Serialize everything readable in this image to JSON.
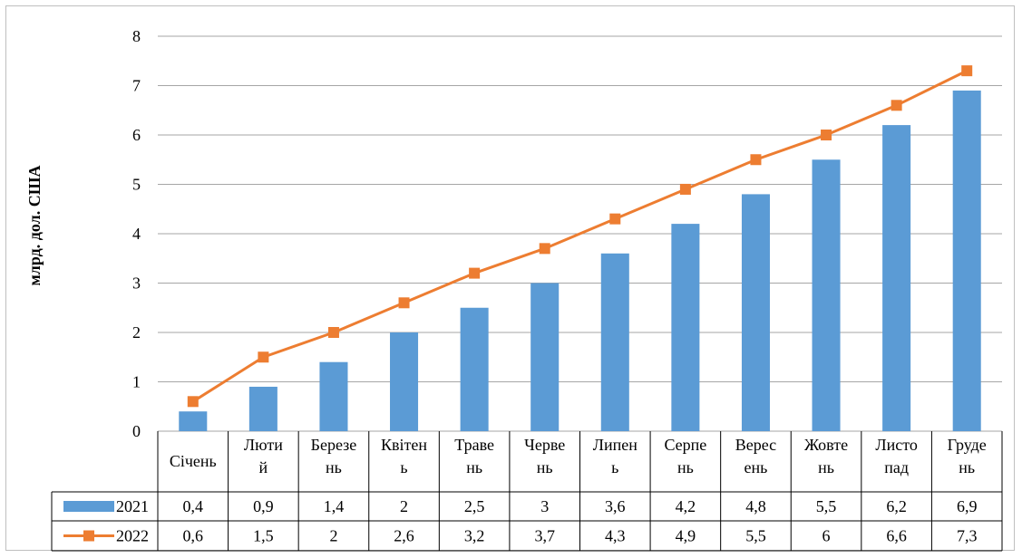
{
  "chart_data": {
    "type": "bar",
    "ylabel": "млрд. дол. США",
    "ylim": [
      0,
      8
    ],
    "yticks": [
      "0",
      "1",
      "2",
      "3",
      "4",
      "5",
      "6",
      "7",
      "8"
    ],
    "grid": true,
    "categories": [
      [
        "Січень"
      ],
      [
        "Люти",
        "й"
      ],
      [
        "Березе",
        "нь"
      ],
      [
        "Квітен",
        "ь"
      ],
      [
        "Траве",
        "нь"
      ],
      [
        "Черве",
        "нь"
      ],
      [
        "Липен",
        "ь"
      ],
      [
        "Серпе",
        "нь"
      ],
      [
        "Верес",
        "ень"
      ],
      [
        "Жовте",
        "нь"
      ],
      [
        "Листо",
        "пад"
      ],
      [
        "Груде",
        "нь"
      ]
    ],
    "series": [
      {
        "name": "2021",
        "kind": "bar",
        "color": "#5b9bd5",
        "values": [
          0.4,
          0.9,
          1.4,
          2,
          2.5,
          3,
          3.6,
          4.2,
          4.8,
          5.5,
          6.2,
          6.9
        ],
        "labels": [
          "0,4",
          "0,9",
          "1,4",
          "2",
          "2,5",
          "3",
          "3,6",
          "4,2",
          "4,8",
          "5,5",
          "6,2",
          "6,9"
        ]
      },
      {
        "name": "2022",
        "kind": "line",
        "color": "#ed7d31",
        "values": [
          0.6,
          1.5,
          2,
          2.6,
          3.2,
          3.7,
          4.3,
          4.9,
          5.5,
          6,
          6.6,
          7.3
        ],
        "labels": [
          "0,6",
          "1,5",
          "2",
          "2,6",
          "3,2",
          "3,7",
          "4,3",
          "4,9",
          "5,5",
          "6",
          "6,6",
          "7,3"
        ]
      }
    ],
    "data_table": true
  }
}
